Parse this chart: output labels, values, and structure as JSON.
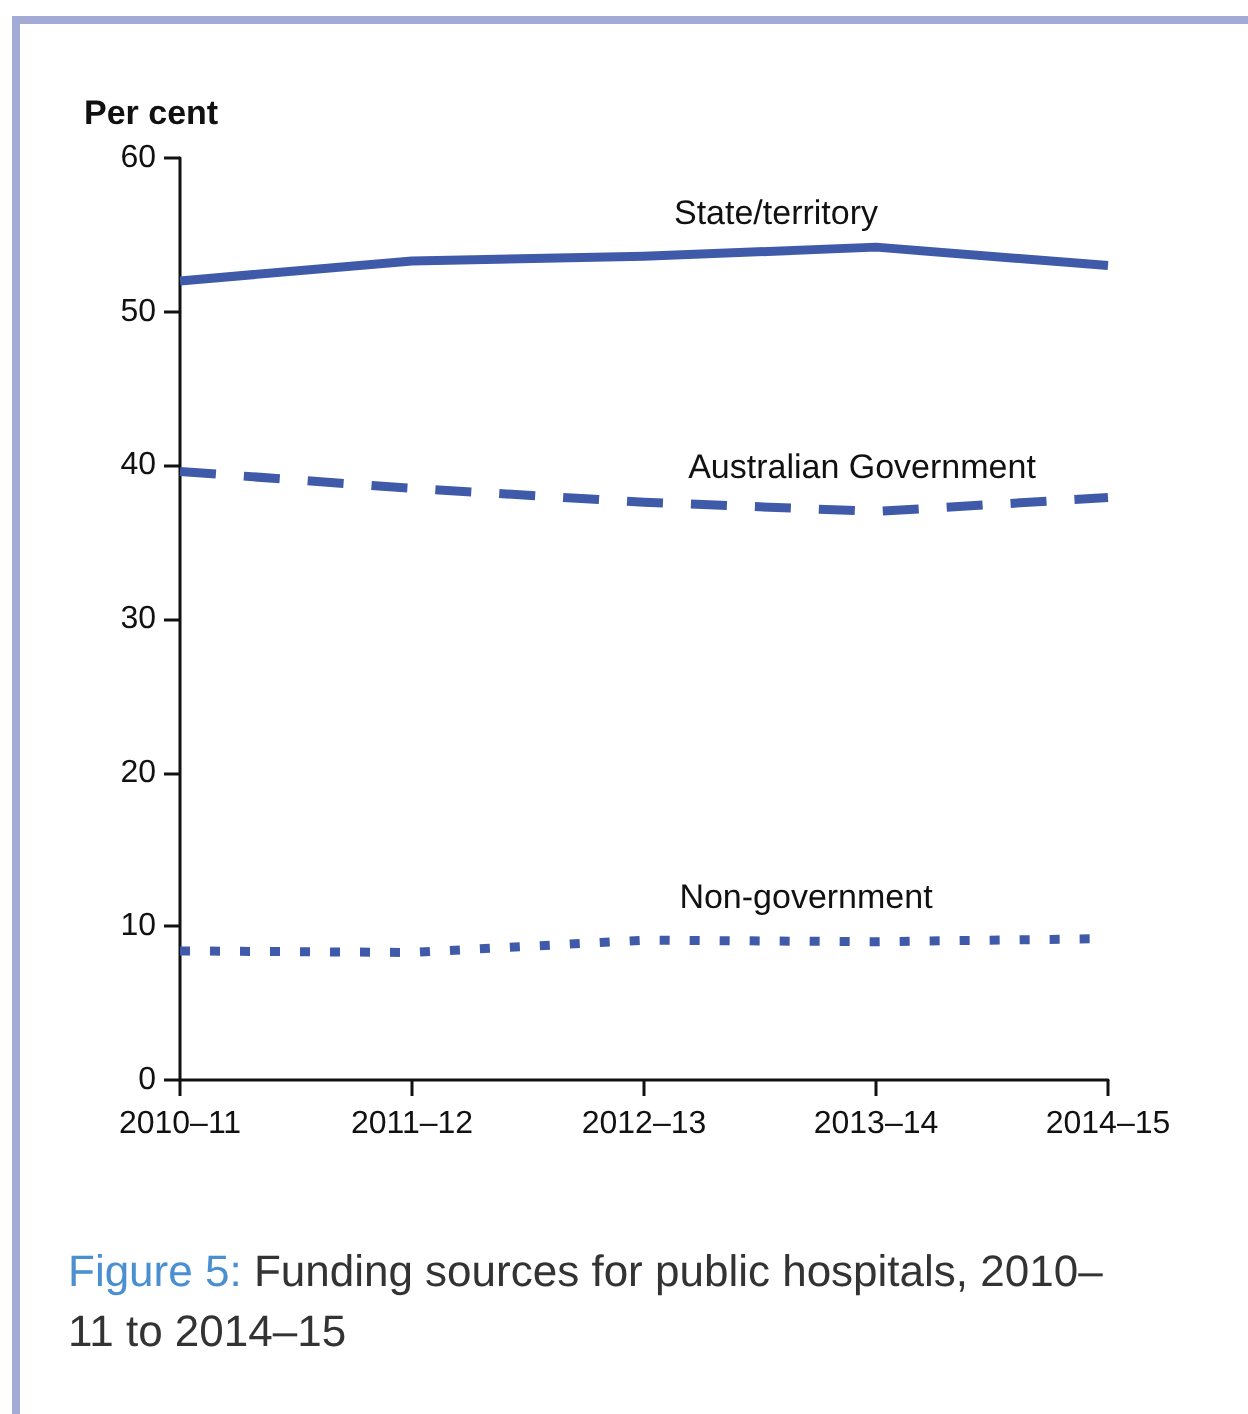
{
  "chart_data": {
    "type": "line",
    "title": "Figure 5: Funding sources for public hospitals, 2010–11 to 2014–15",
    "ylabel": "Per cent",
    "categories": [
      "2010–11",
      "2011–12",
      "2012–13",
      "2013–14",
      "2014–15"
    ],
    "series": [
      {
        "name": "State/territory",
        "color": "#3f5aa8",
        "line_style": "solid",
        "values": [
          52.0,
          53.3,
          53.6,
          54.2,
          53.0
        ]
      },
      {
        "name": "Australian Government",
        "color": "#3f5aa8",
        "line_style": "dashed",
        "values": [
          39.6,
          38.5,
          37.6,
          37.0,
          37.9
        ]
      },
      {
        "name": "Non-government",
        "color": "#3f5aa8",
        "line_style": "dotted",
        "values": [
          8.4,
          8.3,
          9.1,
          9.0,
          9.2
        ]
      }
    ],
    "ylim": [
      0,
      60
    ],
    "yticks": [
      0,
      10,
      20,
      30,
      40,
      50,
      60
    ],
    "grid": false,
    "legend": false,
    "marker": "none"
  }
}
